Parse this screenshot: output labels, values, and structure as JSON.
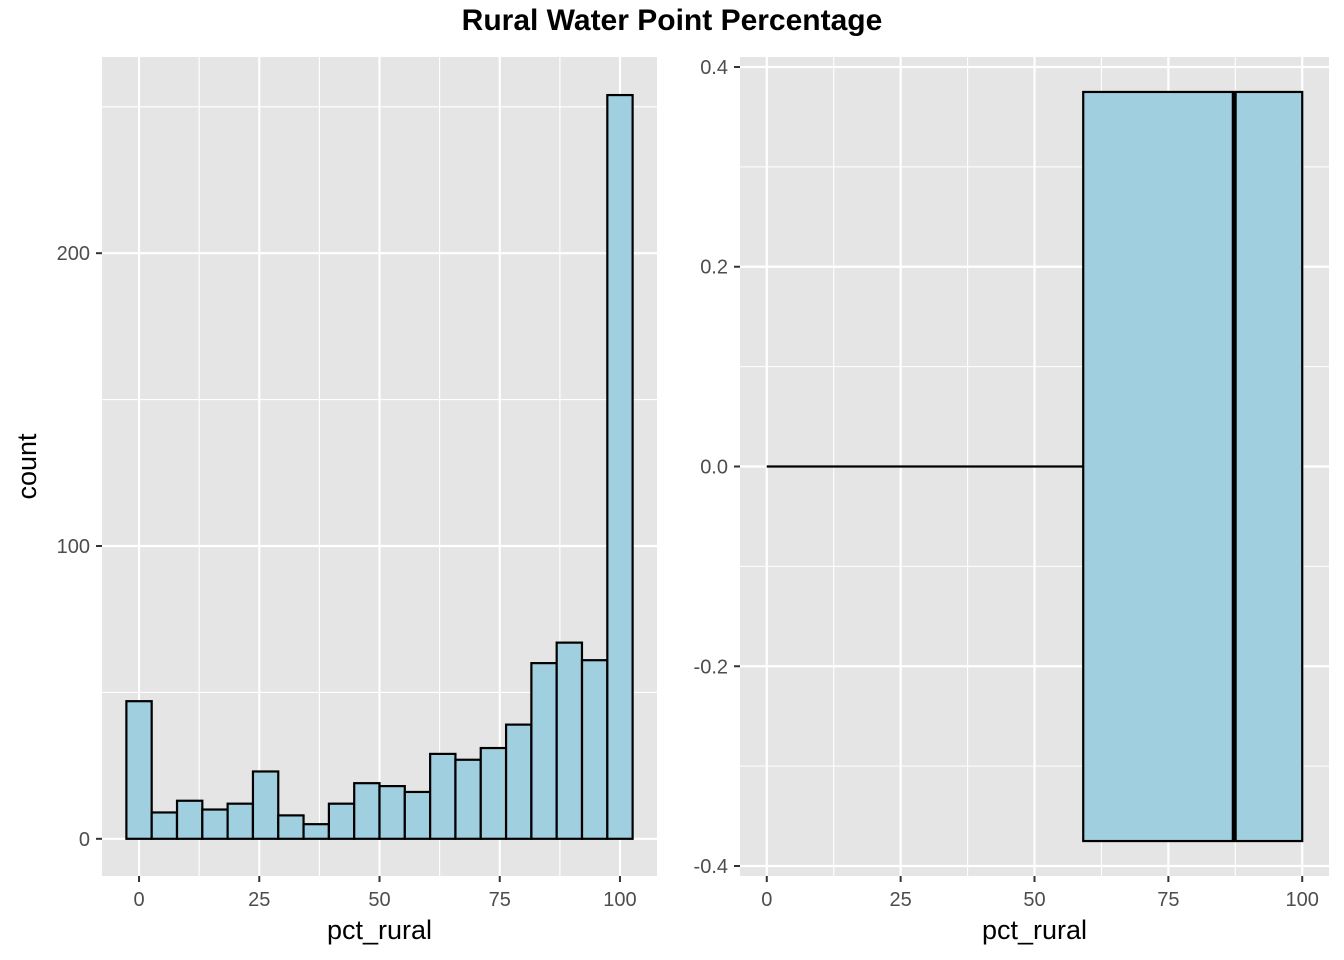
{
  "title": "Rural Water Point Percentage",
  "colors": {
    "panel": "#e5e5e5",
    "grid": "#ffffff",
    "fill": "#a0cfe0",
    "stroke": "#000000",
    "tick_text": "#4d4d4d"
  },
  "chart_data": [
    {
      "type": "bar",
      "subtype": "histogram",
      "xlabel": "pct_rural",
      "ylabel": "count",
      "xlim": [
        -7.7,
        107.7
      ],
      "ylim": [
        -12.7,
        267
      ],
      "x_ticks": [
        0,
        25,
        50,
        75,
        100
      ],
      "y_ticks": [
        0,
        100,
        200
      ],
      "bin_width": 5.26,
      "bin_centers": [
        0,
        5.26,
        10.53,
        15.79,
        21.05,
        26.32,
        31.58,
        36.84,
        42.11,
        47.37,
        52.63,
        57.89,
        63.16,
        68.42,
        73.68,
        78.95,
        84.21,
        89.47,
        94.74,
        100
      ],
      "values": [
        47,
        9,
        13,
        10,
        12,
        23,
        8,
        5,
        12,
        19,
        18,
        16,
        29,
        27,
        31,
        39,
        60,
        67,
        61,
        254
      ],
      "grid": true
    },
    {
      "type": "boxplot",
      "xlabel": "pct_rural",
      "ylabel": "",
      "xlim": [
        -5,
        105
      ],
      "ylim": [
        -0.41,
        0.41
      ],
      "x_ticks": [
        0,
        25,
        50,
        75,
        100
      ],
      "y_ticks": [
        -0.4,
        -0.2,
        0.0,
        0.2,
        0.4
      ],
      "y_tick_labels": [
        "-0.4",
        "-0.2",
        "0.0",
        "0.2",
        "0.4"
      ],
      "stats": {
        "min": 0,
        "q1": 59.1,
        "median": 87.3,
        "q3": 100,
        "max": 100
      },
      "box_half_height": 0.375,
      "grid": true
    }
  ]
}
